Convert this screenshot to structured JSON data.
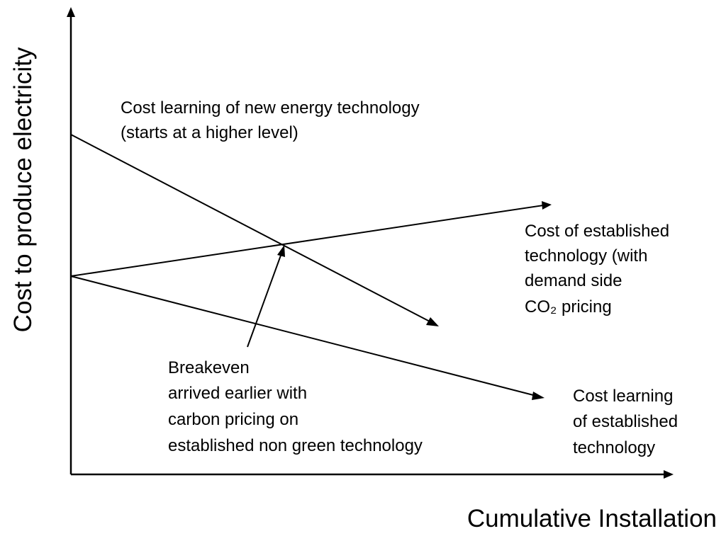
{
  "axes": {
    "y_label": "Cost to produce electricity",
    "x_label": "Cumulative Installation"
  },
  "annotations": {
    "new_tech": [
      "Cost learning of new energy technology",
      "(starts at a higher level)"
    ],
    "established_co2": [
      "Cost of established",
      "technology (with",
      "demand side",
      "CO₂ pricing"
    ],
    "established_learning": [
      "Cost learning",
      "of established",
      "technology"
    ],
    "breakeven": [
      "Breakeven",
      "arrived earlier with",
      "carbon pricing on",
      "established non green technology"
    ]
  }
}
